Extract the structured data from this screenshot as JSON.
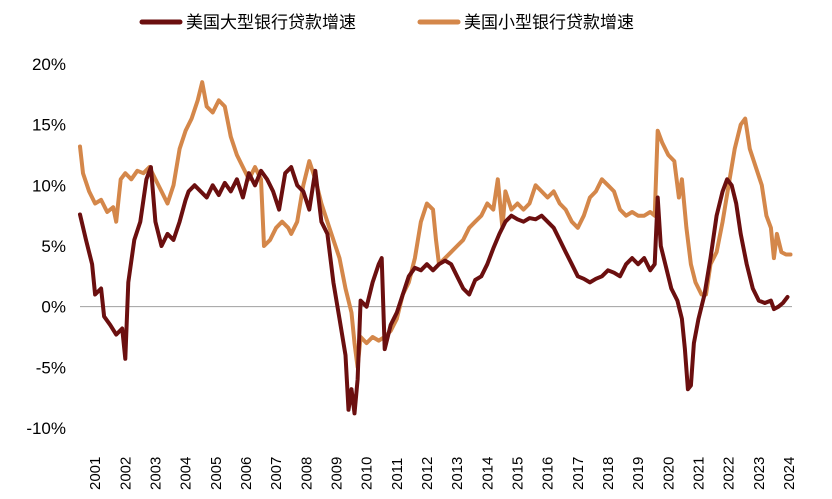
{
  "chart_data": {
    "type": "line",
    "title": "",
    "xlabel": "",
    "ylabel": "",
    "ylim": [
      -10,
      20
    ],
    "yticks": [
      {
        "v": 20,
        "label": "20%"
      },
      {
        "v": 15,
        "label": "15%"
      },
      {
        "v": 10,
        "label": "10%"
      },
      {
        "v": 5,
        "label": "5%"
      },
      {
        "v": 0,
        "label": "0%"
      },
      {
        "v": -5,
        "label": "-5%"
      },
      {
        "v": -10,
        "label": "-10%"
      }
    ],
    "xlim": [
      2001,
      2024.6
    ],
    "xticks": [
      "2001",
      "2002",
      "2003",
      "2004",
      "2005",
      "2006",
      "2007",
      "2008",
      "2009",
      "2010",
      "2011",
      "2012",
      "2013",
      "2014",
      "2015",
      "2016",
      "2017",
      "2018",
      "2019",
      "2020",
      "2021",
      "2022",
      "2023",
      "2024"
    ],
    "legend_position": "top",
    "series": [
      {
        "name": "美国大型银行贷款增速",
        "color": "#6b0f0f",
        "points": [
          [
            2001.0,
            7.6
          ],
          [
            2001.2,
            5.5
          ],
          [
            2001.4,
            3.5
          ],
          [
            2001.5,
            1.0
          ],
          [
            2001.7,
            1.5
          ],
          [
            2001.8,
            -0.8
          ],
          [
            2002.0,
            -1.5
          ],
          [
            2002.2,
            -2.3
          ],
          [
            2002.4,
            -1.8
          ],
          [
            2002.5,
            -4.3
          ],
          [
            2002.6,
            2.0
          ],
          [
            2002.8,
            5.5
          ],
          [
            2003.0,
            7.0
          ],
          [
            2003.2,
            10.5
          ],
          [
            2003.35,
            11.5
          ],
          [
            2003.5,
            7.0
          ],
          [
            2003.7,
            5.0
          ],
          [
            2003.9,
            6.0
          ],
          [
            2004.1,
            5.5
          ],
          [
            2004.3,
            7.0
          ],
          [
            2004.5,
            8.8
          ],
          [
            2004.6,
            9.5
          ],
          [
            2004.8,
            10.0
          ],
          [
            2005.0,
            9.5
          ],
          [
            2005.2,
            9.0
          ],
          [
            2005.4,
            10.0
          ],
          [
            2005.6,
            9.2
          ],
          [
            2005.8,
            10.2
          ],
          [
            2006.0,
            9.5
          ],
          [
            2006.2,
            10.5
          ],
          [
            2006.4,
            9.0
          ],
          [
            2006.6,
            11.0
          ],
          [
            2006.8,
            10.0
          ],
          [
            2007.0,
            11.2
          ],
          [
            2007.2,
            10.5
          ],
          [
            2007.4,
            9.5
          ],
          [
            2007.6,
            8.0
          ],
          [
            2007.8,
            11.0
          ],
          [
            2008.0,
            11.5
          ],
          [
            2008.2,
            10.0
          ],
          [
            2008.4,
            9.5
          ],
          [
            2008.6,
            8.0
          ],
          [
            2008.8,
            11.2
          ],
          [
            2009.0,
            7.0
          ],
          [
            2009.2,
            6.0
          ],
          [
            2009.4,
            2.0
          ],
          [
            2009.6,
            -1.0
          ],
          [
            2009.8,
            -4.0
          ],
          [
            2009.9,
            -8.5
          ],
          [
            2010.0,
            -6.8
          ],
          [
            2010.1,
            -8.8
          ],
          [
            2010.2,
            -6.0
          ],
          [
            2010.3,
            0.5
          ],
          [
            2010.5,
            0.0
          ],
          [
            2010.7,
            2.0
          ],
          [
            2010.9,
            3.5
          ],
          [
            2011.0,
            4.0
          ],
          [
            2011.1,
            -3.5
          ],
          [
            2011.3,
            -1.5
          ],
          [
            2011.5,
            -0.5
          ],
          [
            2011.7,
            1.0
          ],
          [
            2011.9,
            2.5
          ],
          [
            2012.1,
            3.2
          ],
          [
            2012.3,
            3.0
          ],
          [
            2012.5,
            3.5
          ],
          [
            2012.7,
            3.0
          ],
          [
            2012.9,
            3.5
          ],
          [
            2013.1,
            3.8
          ],
          [
            2013.3,
            3.5
          ],
          [
            2013.5,
            2.5
          ],
          [
            2013.7,
            1.5
          ],
          [
            2013.9,
            1.0
          ],
          [
            2014.1,
            2.2
          ],
          [
            2014.3,
            2.5
          ],
          [
            2014.5,
            3.5
          ],
          [
            2014.7,
            4.8
          ],
          [
            2014.9,
            6.0
          ],
          [
            2015.1,
            7.0
          ],
          [
            2015.3,
            7.5
          ],
          [
            2015.5,
            7.2
          ],
          [
            2015.7,
            7.0
          ],
          [
            2015.9,
            7.3
          ],
          [
            2016.1,
            7.2
          ],
          [
            2016.3,
            7.5
          ],
          [
            2016.5,
            7.0
          ],
          [
            2016.7,
            6.5
          ],
          [
            2016.9,
            5.5
          ],
          [
            2017.1,
            4.5
          ],
          [
            2017.3,
            3.5
          ],
          [
            2017.5,
            2.5
          ],
          [
            2017.7,
            2.3
          ],
          [
            2017.9,
            2.0
          ],
          [
            2018.1,
            2.3
          ],
          [
            2018.3,
            2.5
          ],
          [
            2018.5,
            3.0
          ],
          [
            2018.7,
            2.8
          ],
          [
            2018.9,
            2.5
          ],
          [
            2019.1,
            3.5
          ],
          [
            2019.3,
            4.0
          ],
          [
            2019.5,
            3.5
          ],
          [
            2019.7,
            4.0
          ],
          [
            2019.9,
            3.0
          ],
          [
            2020.05,
            3.5
          ],
          [
            2020.15,
            9.0
          ],
          [
            2020.25,
            5.0
          ],
          [
            2020.4,
            3.5
          ],
          [
            2020.6,
            1.5
          ],
          [
            2020.8,
            0.5
          ],
          [
            2020.95,
            -1.0
          ],
          [
            2021.05,
            -3.5
          ],
          [
            2021.15,
            -6.8
          ],
          [
            2021.25,
            -6.5
          ],
          [
            2021.35,
            -3.0
          ],
          [
            2021.5,
            -1.0
          ],
          [
            2021.7,
            1.0
          ],
          [
            2021.9,
            4.0
          ],
          [
            2022.1,
            7.5
          ],
          [
            2022.3,
            9.5
          ],
          [
            2022.45,
            10.5
          ],
          [
            2022.6,
            10.0
          ],
          [
            2022.75,
            8.5
          ],
          [
            2022.9,
            6.0
          ],
          [
            2023.1,
            3.5
          ],
          [
            2023.3,
            1.5
          ],
          [
            2023.5,
            0.5
          ],
          [
            2023.7,
            0.3
          ],
          [
            2023.9,
            0.5
          ],
          [
            2024.0,
            -0.2
          ],
          [
            2024.15,
            0.0
          ],
          [
            2024.3,
            0.3
          ],
          [
            2024.45,
            0.8
          ]
        ]
      },
      {
        "name": "美国小型银行贷款增速",
        "color": "#d4874a",
        "points": [
          [
            2001.0,
            13.2
          ],
          [
            2001.1,
            11.0
          ],
          [
            2001.3,
            9.5
          ],
          [
            2001.5,
            8.5
          ],
          [
            2001.7,
            8.8
          ],
          [
            2001.9,
            7.8
          ],
          [
            2002.1,
            8.2
          ],
          [
            2002.2,
            7.0
          ],
          [
            2002.35,
            10.5
          ],
          [
            2002.5,
            11.0
          ],
          [
            2002.7,
            10.5
          ],
          [
            2002.9,
            11.2
          ],
          [
            2003.1,
            11.0
          ],
          [
            2003.3,
            11.5
          ],
          [
            2003.5,
            10.5
          ],
          [
            2003.7,
            9.5
          ],
          [
            2003.9,
            8.5
          ],
          [
            2004.1,
            10.0
          ],
          [
            2004.3,
            13.0
          ],
          [
            2004.5,
            14.5
          ],
          [
            2004.7,
            15.5
          ],
          [
            2004.9,
            17.0
          ],
          [
            2005.05,
            18.5
          ],
          [
            2005.2,
            16.5
          ],
          [
            2005.4,
            16.0
          ],
          [
            2005.6,
            17.0
          ],
          [
            2005.8,
            16.5
          ],
          [
            2006.0,
            14.0
          ],
          [
            2006.2,
            12.5
          ],
          [
            2006.4,
            11.5
          ],
          [
            2006.6,
            10.5
          ],
          [
            2006.8,
            11.5
          ],
          [
            2006.9,
            11.0
          ],
          [
            2007.0,
            10.5
          ],
          [
            2007.1,
            5.0
          ],
          [
            2007.3,
            5.5
          ],
          [
            2007.5,
            6.5
          ],
          [
            2007.7,
            7.0
          ],
          [
            2007.9,
            6.5
          ],
          [
            2008.0,
            6.0
          ],
          [
            2008.2,
            7.0
          ],
          [
            2008.4,
            10.0
          ],
          [
            2008.6,
            12.0
          ],
          [
            2008.8,
            10.5
          ],
          [
            2009.0,
            8.5
          ],
          [
            2009.2,
            7.0
          ],
          [
            2009.4,
            5.5
          ],
          [
            2009.6,
            4.0
          ],
          [
            2009.8,
            1.5
          ],
          [
            2010.0,
            -0.5
          ],
          [
            2010.1,
            -3.0
          ],
          [
            2010.2,
            -5.0
          ],
          [
            2010.3,
            -2.5
          ],
          [
            2010.5,
            -3.0
          ],
          [
            2010.7,
            -2.5
          ],
          [
            2010.9,
            -2.8
          ],
          [
            2011.1,
            -2.5
          ],
          [
            2011.3,
            -2.0
          ],
          [
            2011.5,
            -1.0
          ],
          [
            2011.7,
            1.0
          ],
          [
            2011.9,
            2.0
          ],
          [
            2012.1,
            4.0
          ],
          [
            2012.3,
            7.0
          ],
          [
            2012.5,
            8.5
          ],
          [
            2012.7,
            8.0
          ],
          [
            2012.8,
            5.5
          ],
          [
            2012.9,
            3.5
          ],
          [
            2013.1,
            4.0
          ],
          [
            2013.3,
            4.5
          ],
          [
            2013.5,
            5.0
          ],
          [
            2013.7,
            5.5
          ],
          [
            2013.9,
            6.5
          ],
          [
            2014.1,
            7.0
          ],
          [
            2014.3,
            7.5
          ],
          [
            2014.5,
            8.5
          ],
          [
            2014.7,
            8.0
          ],
          [
            2014.85,
            10.5
          ],
          [
            2015.0,
            6.5
          ],
          [
            2015.1,
            9.5
          ],
          [
            2015.3,
            8.0
          ],
          [
            2015.5,
            8.5
          ],
          [
            2015.7,
            8.0
          ],
          [
            2015.9,
            8.5
          ],
          [
            2016.1,
            10.0
          ],
          [
            2016.3,
            9.5
          ],
          [
            2016.5,
            9.0
          ],
          [
            2016.7,
            9.5
          ],
          [
            2016.9,
            8.5
          ],
          [
            2017.1,
            8.0
          ],
          [
            2017.3,
            7.0
          ],
          [
            2017.5,
            6.5
          ],
          [
            2017.7,
            7.5
          ],
          [
            2017.9,
            9.0
          ],
          [
            2018.1,
            9.5
          ],
          [
            2018.3,
            10.5
          ],
          [
            2018.5,
            10.0
          ],
          [
            2018.7,
            9.5
          ],
          [
            2018.9,
            8.0
          ],
          [
            2019.1,
            7.5
          ],
          [
            2019.3,
            7.8
          ],
          [
            2019.5,
            7.5
          ],
          [
            2019.7,
            7.5
          ],
          [
            2019.9,
            7.8
          ],
          [
            2020.05,
            7.5
          ],
          [
            2020.15,
            14.5
          ],
          [
            2020.3,
            13.5
          ],
          [
            2020.5,
            12.5
          ],
          [
            2020.7,
            12.0
          ],
          [
            2020.85,
            9.0
          ],
          [
            2020.95,
            10.5
          ],
          [
            2021.1,
            6.5
          ],
          [
            2021.25,
            3.5
          ],
          [
            2021.4,
            2.0
          ],
          [
            2021.6,
            1.0
          ],
          [
            2021.75,
            1.0
          ],
          [
            2021.9,
            3.5
          ],
          [
            2022.1,
            4.5
          ],
          [
            2022.3,
            7.0
          ],
          [
            2022.5,
            10.0
          ],
          [
            2022.7,
            13.0
          ],
          [
            2022.9,
            15.0
          ],
          [
            2023.05,
            15.5
          ],
          [
            2023.2,
            13.0
          ],
          [
            2023.4,
            11.5
          ],
          [
            2023.6,
            10.0
          ],
          [
            2023.75,
            7.5
          ],
          [
            2023.9,
            6.5
          ],
          [
            2024.0,
            4.0
          ],
          [
            2024.1,
            6.0
          ],
          [
            2024.25,
            4.5
          ],
          [
            2024.4,
            4.3
          ],
          [
            2024.55,
            4.3
          ]
        ]
      }
    ]
  }
}
